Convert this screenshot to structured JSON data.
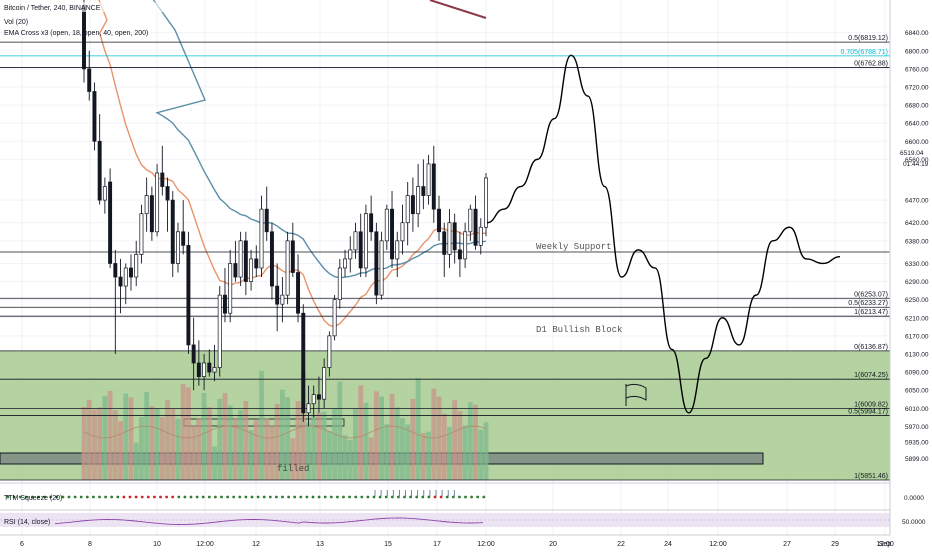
{
  "header": {
    "symbol": "Bitcoin / Tether, 240, BINANCE",
    "vol_label": "Vol (20)",
    "ema_label": "EMA Cross x3 (open, 18, open, 40, open, 200)"
  },
  "price_axis": {
    "labels": [
      "6840.00",
      "6800.00",
      "6760.00",
      "6720.00",
      "6680.00",
      "6640.00",
      "6600.00",
      "6560.00",
      "6470.00",
      "6420.00",
      "6380.00",
      "6330.00",
      "6290.00",
      "6250.00",
      "6210.00",
      "6170.00",
      "6130.00",
      "6090.00",
      "6050.00",
      "6010.00",
      "5970.00",
      "5935.00",
      "5899.00"
    ],
    "current_price": "6519.04",
    "countdown": "01:44:19",
    "ymin": 5820,
    "ymax": 6860,
    "osc_zero": "0.0000",
    "rsi_mid": "50.0000"
  },
  "time_axis": {
    "labels": [
      "6",
      "8",
      "10",
      "12:00",
      "12",
      "13",
      "15",
      "17",
      "12:00",
      "20",
      "22",
      "24",
      "12:00",
      "27",
      "29",
      "12:00",
      "Sep"
    ]
  },
  "levels": [
    {
      "label": "0.5(6819.12)",
      "price": 6819.12,
      "color": "#131722"
    },
    {
      "label": "0.705(6788.71)",
      "price": 6788.71,
      "color": "#00bcd4"
    },
    {
      "label": "0(6762.88)",
      "price": 6762.88,
      "color": "#131722"
    },
    {
      "label": "0(6253.07)",
      "price": 6253.07,
      "color": "#131722"
    },
    {
      "label": "0.5(6233.27)",
      "price": 6233.27,
      "color": "#131722"
    },
    {
      "label": "1(6213.47)",
      "price": 6213.47,
      "color": "#131722"
    },
    {
      "label": "0(6136.87)",
      "price": 6136.87,
      "color": "#131722"
    },
    {
      "label": "1(6074.25)",
      "price": 6074.25,
      "color": "#131722"
    },
    {
      "label": "1(6009.82)",
      "price": 6009.82,
      "color": "#131722"
    },
    {
      "label": "0.5(5994.17)",
      "price": 5994.17,
      "color": "#131722"
    },
    {
      "label": "1(5851.46)",
      "price": 5851.46,
      "color": "#131722"
    }
  ],
  "annotations": {
    "weekly_support": "Weekly Support",
    "bullish_block": "D1 Bullish Block",
    "filled": "filled"
  },
  "indicators": {
    "osc_label": "TTM Squeeze (20)",
    "rsi_label": "RSI (14, close)"
  },
  "colors": {
    "up": "#26a69a",
    "down": "#131722",
    "ema_fast": "#e8936b",
    "ema_mid": "#5b8fa8",
    "ema_slow": "#8b3a4a",
    "zone_fill": "#a7cb8f",
    "vol_up": "#7fb98f",
    "vol_down": "#c8948a",
    "teal_level": "#00bcd4",
    "rsi_band": "#ece4f3",
    "rsi_line": "#8e44ad",
    "dot_green": "#2e7d32",
    "dot_red": "#c62828"
  },
  "chart_data": {
    "type": "candlestick",
    "title": "Bitcoin / Tether, 240, BINANCE",
    "ylim": [
      5820,
      6860
    ],
    "candles": [
      {
        "o": 6900,
        "h": 6940,
        "l": 6730,
        "c": 6760
      },
      {
        "o": 6760,
        "h": 6800,
        "l": 6690,
        "c": 6710
      },
      {
        "o": 6710,
        "h": 6730,
        "l": 6580,
        "c": 6600
      },
      {
        "o": 6600,
        "h": 6660,
        "l": 6460,
        "c": 6470
      },
      {
        "o": 6470,
        "h": 6520,
        "l": 6440,
        "c": 6500
      },
      {
        "o": 6510,
        "h": 6540,
        "l": 6320,
        "c": 6330
      },
      {
        "o": 6330,
        "h": 6360,
        "l": 6130,
        "c": 6300
      },
      {
        "o": 6300,
        "h": 6340,
        "l": 6220,
        "c": 6280
      },
      {
        "o": 6280,
        "h": 6330,
        "l": 6240,
        "c": 6320
      },
      {
        "o": 6320,
        "h": 6350,
        "l": 6270,
        "c": 6300
      },
      {
        "o": 6300,
        "h": 6380,
        "l": 6280,
        "c": 6350
      },
      {
        "o": 6350,
        "h": 6460,
        "l": 6330,
        "c": 6440
      },
      {
        "o": 6440,
        "h": 6520,
        "l": 6400,
        "c": 6480
      },
      {
        "o": 6480,
        "h": 6500,
        "l": 6380,
        "c": 6400
      },
      {
        "o": 6400,
        "h": 6550,
        "l": 6390,
        "c": 6530
      },
      {
        "o": 6530,
        "h": 6590,
        "l": 6480,
        "c": 6500
      },
      {
        "o": 6500,
        "h": 6520,
        "l": 6400,
        "c": 6470
      },
      {
        "o": 6470,
        "h": 6490,
        "l": 6300,
        "c": 6330
      },
      {
        "o": 6330,
        "h": 6420,
        "l": 6310,
        "c": 6400
      },
      {
        "o": 6400,
        "h": 6470,
        "l": 6350,
        "c": 6370
      },
      {
        "o": 6370,
        "h": 6400,
        "l": 6130,
        "c": 6150
      },
      {
        "o": 6150,
        "h": 6210,
        "l": 6050,
        "c": 6110
      },
      {
        "o": 6110,
        "h": 6160,
        "l": 6060,
        "c": 6080
      },
      {
        "o": 6080,
        "h": 6130,
        "l": 6050,
        "c": 6110
      },
      {
        "o": 6110,
        "h": 6140,
        "l": 6080,
        "c": 6090
      },
      {
        "o": 6090,
        "h": 6150,
        "l": 6070,
        "c": 6100
      },
      {
        "o": 6100,
        "h": 6280,
        "l": 6080,
        "c": 6260
      },
      {
        "o": 6260,
        "h": 6320,
        "l": 6200,
        "c": 6220
      },
      {
        "o": 6220,
        "h": 6360,
        "l": 6200,
        "c": 6330
      },
      {
        "o": 6330,
        "h": 6380,
        "l": 6290,
        "c": 6300
      },
      {
        "o": 6300,
        "h": 6400,
        "l": 6280,
        "c": 6380
      },
      {
        "o": 6380,
        "h": 6400,
        "l": 6260,
        "c": 6290
      },
      {
        "o": 6290,
        "h": 6360,
        "l": 6270,
        "c": 6340
      },
      {
        "o": 6340,
        "h": 6370,
        "l": 6300,
        "c": 6320
      },
      {
        "o": 6320,
        "h": 6480,
        "l": 6300,
        "c": 6450
      },
      {
        "o": 6450,
        "h": 6500,
        "l": 6380,
        "c": 6400
      },
      {
        "o": 6400,
        "h": 6420,
        "l": 6250,
        "c": 6280
      },
      {
        "o": 6280,
        "h": 6330,
        "l": 6180,
        "c": 6240
      },
      {
        "o": 6240,
        "h": 6300,
        "l": 6200,
        "c": 6260
      },
      {
        "o": 6260,
        "h": 6400,
        "l": 6240,
        "c": 6380
      },
      {
        "o": 6380,
        "h": 6420,
        "l": 6300,
        "c": 6310
      },
      {
        "o": 6310,
        "h": 6350,
        "l": 6200,
        "c": 6220
      },
      {
        "o": 6220,
        "h": 6240,
        "l": 5980,
        "c": 6000
      },
      {
        "o": 6000,
        "h": 6060,
        "l": 5970,
        "c": 6020
      },
      {
        "o": 6020,
        "h": 6060,
        "l": 5990,
        "c": 6040
      },
      {
        "o": 6040,
        "h": 6080,
        "l": 6000,
        "c": 6030
      },
      {
        "o": 6030,
        "h": 6120,
        "l": 6010,
        "c": 6100
      },
      {
        "o": 6100,
        "h": 6180,
        "l": 6080,
        "c": 6170
      },
      {
        "o": 6170,
        "h": 6260,
        "l": 6160,
        "c": 6250
      },
      {
        "o": 6250,
        "h": 6340,
        "l": 6230,
        "c": 6320
      },
      {
        "o": 6320,
        "h": 6360,
        "l": 6300,
        "c": 6340
      },
      {
        "o": 6340,
        "h": 6390,
        "l": 6310,
        "c": 6360
      },
      {
        "o": 6360,
        "h": 6420,
        "l": 6340,
        "c": 6400
      },
      {
        "o": 6400,
        "h": 6440,
        "l": 6300,
        "c": 6320
      },
      {
        "o": 6320,
        "h": 6460,
        "l": 6300,
        "c": 6440
      },
      {
        "o": 6440,
        "h": 6480,
        "l": 6380,
        "c": 6400
      },
      {
        "o": 6400,
        "h": 6420,
        "l": 6240,
        "c": 6260
      },
      {
        "o": 6260,
        "h": 6400,
        "l": 6250,
        "c": 6380
      },
      {
        "o": 6380,
        "h": 6460,
        "l": 6360,
        "c": 6450
      },
      {
        "o": 6450,
        "h": 6490,
        "l": 6320,
        "c": 6340
      },
      {
        "o": 6340,
        "h": 6400,
        "l": 6300,
        "c": 6380
      },
      {
        "o": 6380,
        "h": 6460,
        "l": 6350,
        "c": 6420
      },
      {
        "o": 6420,
        "h": 6510,
        "l": 6370,
        "c": 6480
      },
      {
        "o": 6480,
        "h": 6520,
        "l": 6400,
        "c": 6440
      },
      {
        "o": 6440,
        "h": 6550,
        "l": 6410,
        "c": 6500
      },
      {
        "o": 6500,
        "h": 6560,
        "l": 6450,
        "c": 6480
      },
      {
        "o": 6480,
        "h": 6570,
        "l": 6460,
        "c": 6550
      },
      {
        "o": 6550,
        "h": 6590,
        "l": 6420,
        "c": 6450
      },
      {
        "o": 6450,
        "h": 6480,
        "l": 6380,
        "c": 6400
      },
      {
        "o": 6400,
        "h": 6420,
        "l": 6300,
        "c": 6350
      },
      {
        "o": 6350,
        "h": 6450,
        "l": 6320,
        "c": 6420
      },
      {
        "o": 6420,
        "h": 6440,
        "l": 6330,
        "c": 6360
      },
      {
        "o": 6360,
        "h": 6400,
        "l": 6300,
        "c": 6340
      },
      {
        "o": 6340,
        "h": 6420,
        "l": 6320,
        "c": 6400
      },
      {
        "o": 6400,
        "h": 6460,
        "l": 6380,
        "c": 6450
      },
      {
        "o": 6450,
        "h": 6480,
        "l": 6360,
        "c": 6370
      },
      {
        "o": 6370,
        "h": 6430,
        "l": 6350,
        "c": 6410
      },
      {
        "o": 6410,
        "h": 6530,
        "l": 6390,
        "c": 6519
      }
    ],
    "projection": [
      [
        6420,
        0
      ],
      [
        6450,
        1
      ],
      [
        6500,
        2
      ],
      [
        6560,
        3
      ],
      [
        6650,
        4
      ],
      [
        6790,
        5
      ],
      [
        6700,
        6
      ],
      [
        6500,
        7
      ],
      [
        6300,
        8
      ],
      [
        6360,
        9
      ],
      [
        6320,
        10
      ],
      [
        6140,
        11
      ],
      [
        6000,
        12
      ],
      [
        6120,
        13
      ],
      [
        6210,
        14
      ],
      [
        6150,
        15
      ],
      [
        6260,
        16
      ],
      [
        6380,
        17
      ],
      [
        6410,
        18
      ],
      [
        6340,
        19
      ],
      [
        6330,
        20
      ],
      [
        6345,
        21
      ]
    ]
  }
}
